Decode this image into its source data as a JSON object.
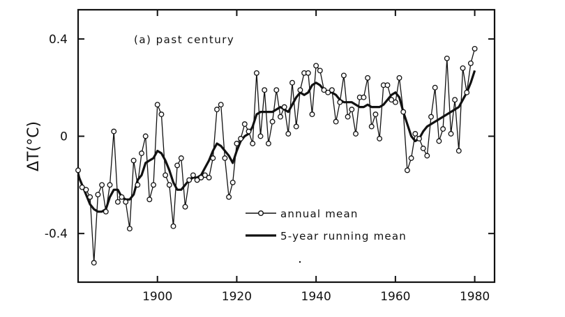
{
  "chart_data": {
    "type": "line",
    "annotation": "(a) past century",
    "xlabel": "",
    "ylabel": "ΔT(°C)",
    "xlim": [
      1880,
      1985
    ],
    "ylim": [
      -0.6,
      0.52
    ],
    "xticks": [
      1900,
      1920,
      1940,
      1960,
      1980
    ],
    "xtick_labels": [
      "1900",
      "1920",
      "1940",
      "1960",
      "1980"
    ],
    "yticks": [
      0.4,
      0,
      -0.4
    ],
    "ytick_labels": [
      "0.4",
      "0",
      "-0.4"
    ],
    "grid": false,
    "legend_position": "bottom-right",
    "x": [
      1880,
      1881,
      1882,
      1883,
      1884,
      1885,
      1886,
      1887,
      1888,
      1889,
      1890,
      1891,
      1892,
      1893,
      1894,
      1895,
      1896,
      1897,
      1898,
      1899,
      1900,
      1901,
      1902,
      1903,
      1904,
      1905,
      1906,
      1907,
      1908,
      1909,
      1910,
      1911,
      1912,
      1913,
      1914,
      1915,
      1916,
      1917,
      1918,
      1919,
      1920,
      1921,
      1922,
      1923,
      1924,
      1925,
      1926,
      1927,
      1928,
      1929,
      1930,
      1931,
      1932,
      1933,
      1934,
      1935,
      1936,
      1937,
      1938,
      1939,
      1940,
      1941,
      1942,
      1943,
      1944,
      1945,
      1946,
      1947,
      1948,
      1949,
      1950,
      1951,
      1952,
      1953,
      1954,
      1955,
      1956,
      1957,
      1958,
      1959,
      1960,
      1961,
      1962,
      1963,
      1964,
      1965,
      1966,
      1967,
      1968,
      1969,
      1970,
      1971,
      1972,
      1973,
      1974,
      1975,
      1976,
      1977,
      1978,
      1979,
      1980
    ],
    "series": [
      {
        "name": "annual mean",
        "values": [
          -0.14,
          -0.21,
          -0.22,
          -0.25,
          -0.52,
          -0.24,
          -0.2,
          -0.31,
          -0.2,
          0.02,
          -0.27,
          -0.25,
          -0.27,
          -0.38,
          -0.1,
          -0.2,
          -0.07,
          0.0,
          -0.26,
          -0.2,
          0.13,
          0.09,
          -0.16,
          -0.2,
          -0.37,
          -0.12,
          -0.09,
          -0.29,
          -0.18,
          -0.16,
          -0.18,
          -0.17,
          -0.16,
          -0.17,
          -0.09,
          0.11,
          0.13,
          -0.09,
          -0.25,
          -0.19,
          -0.03,
          -0.01,
          0.05,
          0.02,
          -0.03,
          0.26,
          0.0,
          0.19,
          -0.03,
          0.06,
          0.19,
          0.08,
          0.12,
          0.01,
          0.22,
          0.04,
          0.19,
          0.26,
          0.26,
          0.09,
          0.29,
          0.27,
          0.19,
          0.18,
          0.19,
          0.06,
          0.14,
          0.25,
          0.08,
          0.11,
          0.01,
          0.16,
          0.16,
          0.24,
          0.04,
          0.09,
          -0.01,
          0.21,
          0.21,
          0.15,
          0.14,
          0.24,
          0.1,
          -0.14,
          -0.09,
          0.01,
          -0.01,
          -0.05,
          -0.08,
          0.08,
          0.2,
          -0.02,
          0.03,
          0.32,
          0.01,
          0.15,
          -0.06,
          0.28,
          0.18,
          0.3,
          0.36
        ]
      },
      {
        "name": "5-year running mean",
        "values": [
          -0.16,
          -0.2,
          -0.24,
          -0.28,
          -0.3,
          -0.31,
          -0.31,
          -0.3,
          -0.25,
          -0.22,
          -0.22,
          -0.25,
          -0.26,
          -0.26,
          -0.24,
          -0.18,
          -0.16,
          -0.11,
          -0.1,
          -0.09,
          -0.06,
          -0.07,
          -0.1,
          -0.14,
          -0.19,
          -0.22,
          -0.22,
          -0.2,
          -0.18,
          -0.17,
          -0.17,
          -0.16,
          -0.13,
          -0.1,
          -0.06,
          -0.03,
          -0.04,
          -0.06,
          -0.08,
          -0.11,
          -0.06,
          -0.02,
          0.0,
          0.01,
          0.04,
          0.09,
          0.1,
          0.1,
          0.1,
          0.1,
          0.11,
          0.12,
          0.11,
          0.1,
          0.13,
          0.16,
          0.18,
          0.17,
          0.18,
          0.21,
          0.22,
          0.21,
          0.19,
          0.18,
          0.18,
          0.17,
          0.15,
          0.14,
          0.14,
          0.14,
          0.13,
          0.12,
          0.12,
          0.13,
          0.12,
          0.12,
          0.12,
          0.13,
          0.15,
          0.17,
          0.18,
          0.16,
          0.1,
          0.05,
          0.0,
          -0.02,
          -0.01,
          0.02,
          0.04,
          0.05,
          0.06,
          0.07,
          0.08,
          0.09,
          0.1,
          0.11,
          0.12,
          0.15,
          0.18,
          0.22,
          0.27
        ]
      }
    ]
  }
}
